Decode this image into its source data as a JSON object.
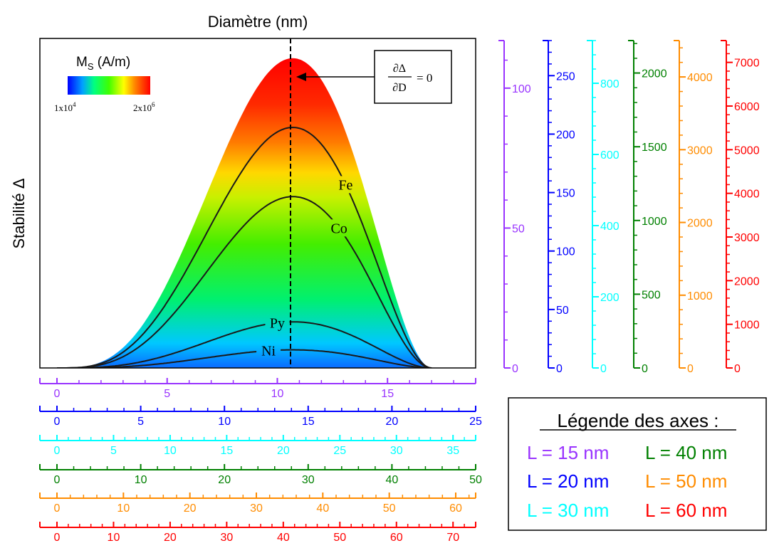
{
  "chart_data": {
    "type": "area",
    "title": "Diamètre (nm)",
    "ylabel": "Stabilité Δ",
    "colorbar": {
      "title_main": "M",
      "title_sub": "S",
      "title_unit": " (A/m)",
      "min_base": "1x10",
      "min_exp": "4",
      "max_base": "2x10",
      "max_exp": "6"
    },
    "annotation": {
      "num": "∂Δ",
      "den": "∂D",
      "rhs": "= 0"
    },
    "curves": [
      {
        "name": "Fe",
        "peak": 0.73
      },
      {
        "name": "Co",
        "peak": 0.52
      },
      {
        "name": "Py",
        "peak": 0.14
      },
      {
        "name": "Ni",
        "peak": 0.055
      }
    ],
    "curve_shape": {
      "x_start": 0,
      "x_end": 17.0,
      "x_peak": 10.7
    },
    "x_axes": [
      {
        "color": "#9933ff",
        "max": 19,
        "minor": 1,
        "labels": [
          0,
          5,
          10,
          15
        ]
      },
      {
        "color": "#0000ff",
        "max": 25,
        "minor": 1,
        "labels": [
          0,
          5,
          10,
          15,
          20,
          25
        ]
      },
      {
        "color": "#00ffff",
        "max": 37,
        "minor": 1,
        "labels": [
          0,
          5,
          10,
          15,
          20,
          25,
          30,
          35
        ]
      },
      {
        "color": "#008000",
        "max": 50,
        "minor": 2,
        "labels": [
          0,
          10,
          20,
          30,
          40,
          50
        ]
      },
      {
        "color": "#ff8c00",
        "max": 63,
        "minor": 2,
        "labels": [
          0,
          10,
          20,
          30,
          40,
          50,
          60
        ]
      },
      {
        "color": "#ff0000",
        "max": 74,
        "minor": 2,
        "labels": [
          0,
          10,
          20,
          30,
          40,
          50,
          60,
          70
        ]
      }
    ],
    "y_axes": [
      {
        "color": "#9933ff",
        "max": 117,
        "major": 50,
        "minor": 10
      },
      {
        "color": "#0000ff",
        "max": 280,
        "major": 50,
        "minor": 10
      },
      {
        "color": "#00ffff",
        "max": 920,
        "major": 200,
        "minor": 40
      },
      {
        "color": "#008000",
        "max": 2220,
        "major": 500,
        "minor": 100
      },
      {
        "color": "#ff8c00",
        "max": 4500,
        "major": 1000,
        "minor": 200
      },
      {
        "color": "#ff0000",
        "max": 7500,
        "major": 1000,
        "minor": 200
      }
    ],
    "legend": {
      "title": "Légende des axes :",
      "entries": [
        {
          "text": "L = 15 nm",
          "color": "#9933ff"
        },
        {
          "text": "L = 40 nm",
          "color": "#008000"
        },
        {
          "text": "L = 20 nm",
          "color": "#0000ff"
        },
        {
          "text": "L = 50 nm",
          "color": "#ff8c00"
        },
        {
          "text": "L = 30 nm",
          "color": "#00ffff"
        },
        {
          "text": "L = 60 nm",
          "color": "#ff0000"
        }
      ]
    }
  }
}
